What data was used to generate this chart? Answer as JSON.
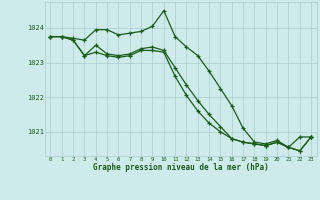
{
  "title": "Graphe pression niveau de la mer (hPa)",
  "bg_color": "#ceeaea",
  "grid_color": "#aacece",
  "line_color": "#1a5c1a",
  "xlim": [
    -0.5,
    23.5
  ],
  "ylim": [
    1020.3,
    1024.75
  ],
  "yticks": [
    1021,
    1022,
    1023,
    1024
  ],
  "xticks": [
    0,
    1,
    2,
    3,
    4,
    5,
    6,
    7,
    8,
    9,
    10,
    11,
    12,
    13,
    14,
    15,
    16,
    17,
    18,
    19,
    20,
    21,
    22,
    23
  ],
  "series1": [
    1023.75,
    1023.75,
    1023.7,
    1023.65,
    1023.95,
    1023.95,
    1023.8,
    1023.85,
    1023.9,
    1024.05,
    1024.5,
    1023.75,
    1023.45,
    1023.2,
    1022.75,
    1022.25,
    1021.75,
    1021.1,
    1020.7,
    1020.65,
    1020.75,
    1020.55,
    1020.85,
    1020.85
  ],
  "series2": [
    1023.75,
    1023.75,
    1023.65,
    1023.2,
    1023.5,
    1023.25,
    1023.2,
    1023.25,
    1023.4,
    1023.45,
    1023.35,
    1022.85,
    1022.35,
    1021.9,
    1021.5,
    1021.15,
    1020.8,
    1020.7,
    1020.65,
    1020.6,
    1020.7,
    1020.55,
    1020.45,
    1020.85
  ],
  "series3": [
    1023.75,
    1023.75,
    1023.65,
    1023.2,
    1023.3,
    1023.2,
    1023.15,
    1023.2,
    1023.35,
    1023.35,
    1023.3,
    1022.6,
    1022.05,
    1021.6,
    1021.25,
    1021.0,
    1020.8,
    1020.7,
    1020.65,
    1020.6,
    1020.7,
    1020.55,
    1020.45,
    1020.85
  ]
}
